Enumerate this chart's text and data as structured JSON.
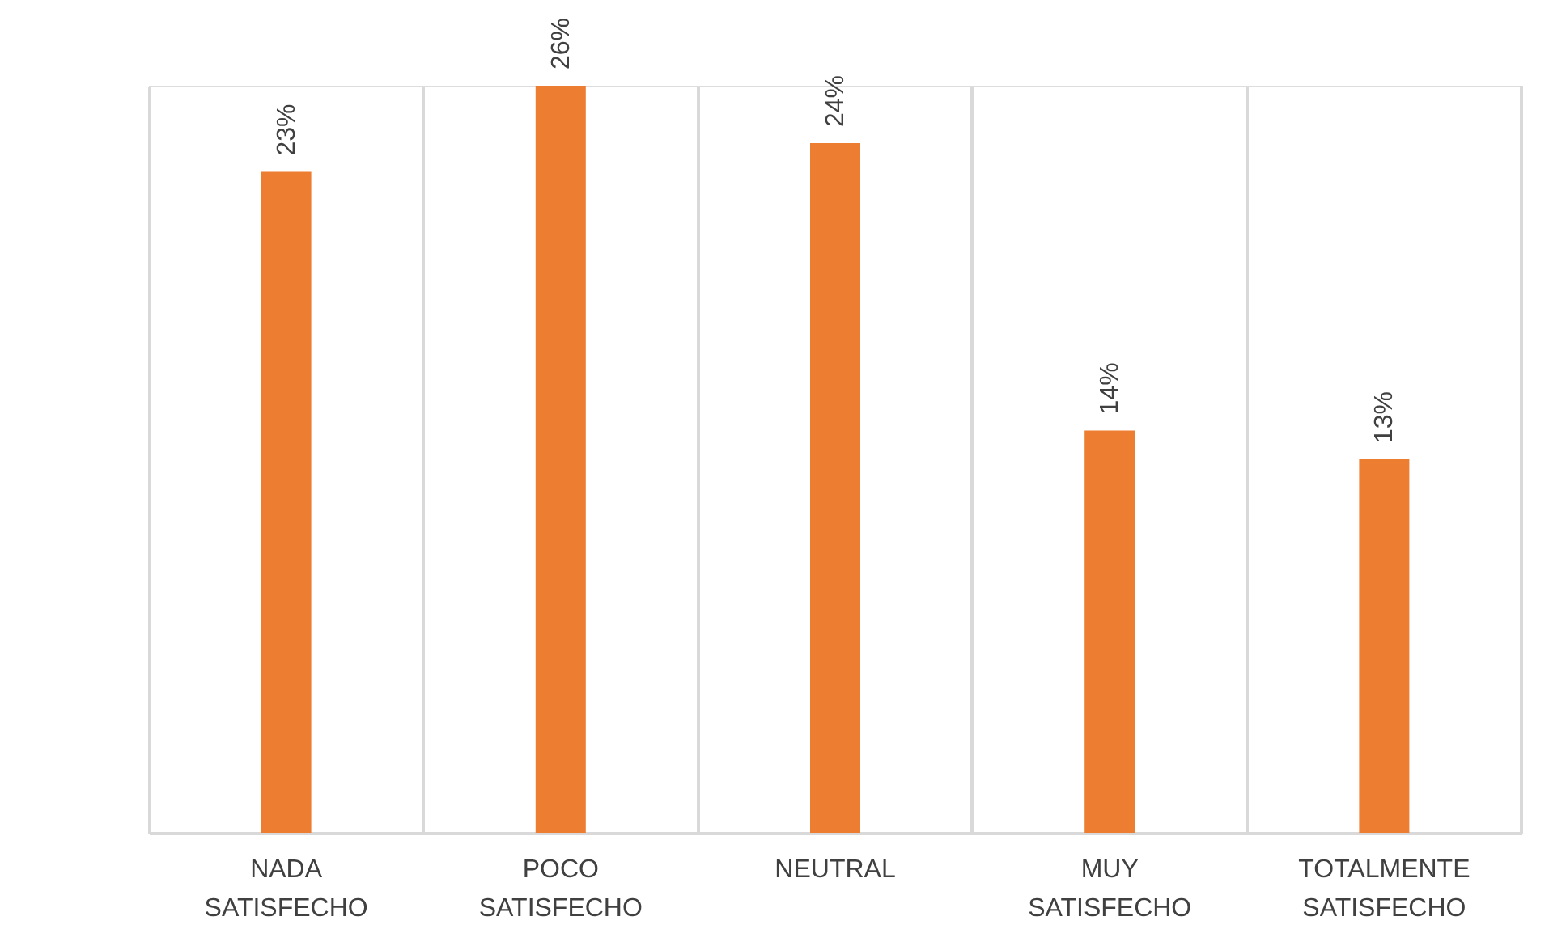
{
  "chart_data": {
    "type": "bar",
    "categories": [
      "NADA SATISFECHO",
      "POCO SATISFECHO",
      "NEUTRAL",
      "MUY SATISFECHO",
      "TOTALMENTE SATISFECHO"
    ],
    "values": [
      23,
      26,
      24,
      14,
      13
    ],
    "value_labels": [
      "23%",
      "26%",
      "24%",
      "14%",
      "13%"
    ],
    "color": "#ed7d31",
    "grid": "x"
  }
}
